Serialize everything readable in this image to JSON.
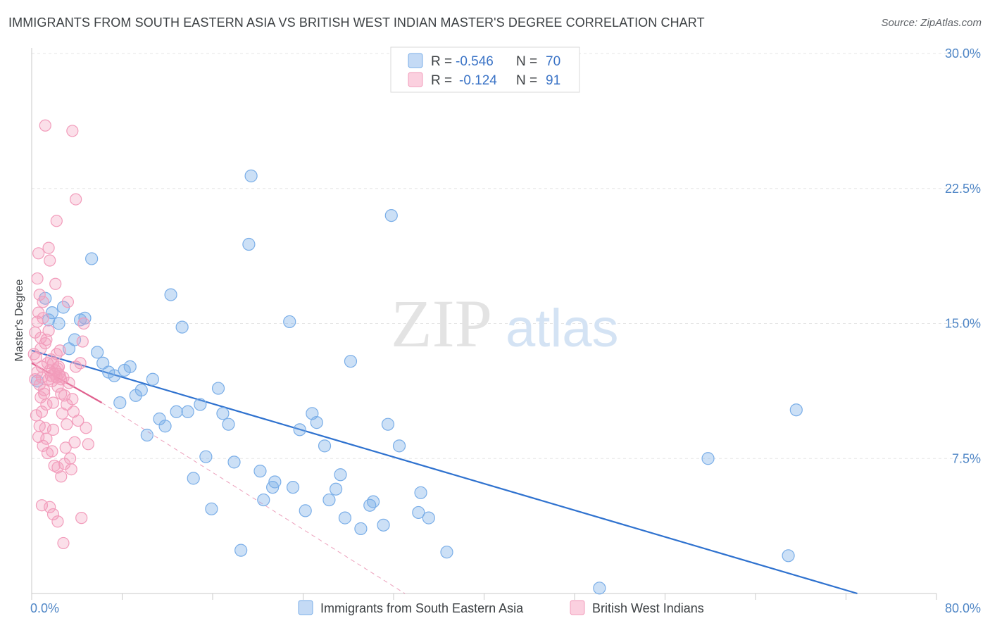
{
  "header": {
    "title": "IMMIGRANTS FROM SOUTH EASTERN ASIA VS BRITISH WEST INDIAN MASTER'S DEGREE CORRELATION CHART",
    "source": "Source: ZipAtlas.com"
  },
  "watermark": {
    "zip": "ZIP",
    "atlas": "atlas"
  },
  "chart_data": {
    "type": "scatter",
    "ylabel": "Master's Degree",
    "x_range": [
      0,
      80
    ],
    "y_range": [
      0,
      30
    ],
    "x_tick_labels": [
      "0.0%",
      "80.0%"
    ],
    "y_ticks": [
      7.5,
      15.0,
      22.5,
      30.0
    ],
    "y_tick_labels": [
      "7.5%",
      "15.0%",
      "22.5%",
      "30.0%"
    ],
    "grid": "horizontal dashed",
    "legend_placement": "top-center",
    "series": [
      {
        "name": "Immigrants from South Eastern Asia",
        "color": "#7aaee8",
        "line_color": "#2f72cf",
        "r_label": "R =",
        "r_value": "-0.546",
        "n_label": "N =",
        "n_value": "70",
        "trend": {
          "x": [
            0,
            73
          ],
          "y": [
            13.5,
            0
          ]
        },
        "points": [
          [
            0.5,
            11.8
          ],
          [
            1.2,
            16.4
          ],
          [
            1.5,
            15.2
          ],
          [
            1.8,
            15.6
          ],
          [
            2.4,
            15.0
          ],
          [
            2.8,
            15.9
          ],
          [
            3.3,
            13.6
          ],
          [
            3.8,
            14.1
          ],
          [
            4.3,
            15.2
          ],
          [
            4.7,
            15.3
          ],
          [
            5.3,
            18.6
          ],
          [
            5.8,
            13.4
          ],
          [
            6.3,
            12.8
          ],
          [
            6.8,
            12.3
          ],
          [
            7.3,
            12.1
          ],
          [
            7.8,
            10.6
          ],
          [
            8.2,
            12.4
          ],
          [
            8.7,
            12.6
          ],
          [
            9.2,
            11.0
          ],
          [
            9.7,
            11.3
          ],
          [
            10.2,
            8.8
          ],
          [
            10.7,
            11.9
          ],
          [
            11.3,
            9.7
          ],
          [
            11.8,
            9.3
          ],
          [
            12.3,
            16.6
          ],
          [
            12.8,
            10.1
          ],
          [
            13.3,
            14.8
          ],
          [
            13.8,
            10.1
          ],
          [
            14.3,
            6.4
          ],
          [
            14.9,
            10.5
          ],
          [
            15.4,
            7.6
          ],
          [
            15.9,
            4.7
          ],
          [
            16.5,
            11.4
          ],
          [
            16.9,
            10.0
          ],
          [
            17.4,
            9.4
          ],
          [
            17.9,
            7.3
          ],
          [
            18.5,
            2.4
          ],
          [
            19.2,
            19.4
          ],
          [
            19.4,
            23.2
          ],
          [
            20.2,
            6.8
          ],
          [
            20.5,
            5.2
          ],
          [
            21.3,
            5.9
          ],
          [
            21.5,
            6.2
          ],
          [
            22.8,
            15.1
          ],
          [
            23.1,
            5.9
          ],
          [
            23.7,
            9.1
          ],
          [
            24.2,
            4.6
          ],
          [
            24.8,
            10.0
          ],
          [
            25.2,
            9.5
          ],
          [
            25.9,
            8.2
          ],
          [
            26.3,
            5.2
          ],
          [
            26.9,
            5.8
          ],
          [
            27.3,
            6.6
          ],
          [
            27.7,
            4.2
          ],
          [
            28.2,
            12.9
          ],
          [
            29.1,
            3.6
          ],
          [
            29.9,
            4.9
          ],
          [
            30.2,
            5.1
          ],
          [
            31.1,
            3.8
          ],
          [
            31.5,
            9.4
          ],
          [
            31.8,
            21.0
          ],
          [
            32.5,
            8.2
          ],
          [
            34.2,
            4.5
          ],
          [
            34.4,
            5.6
          ],
          [
            35.1,
            4.2
          ],
          [
            36.7,
            2.3
          ],
          [
            50.2,
            0.3
          ],
          [
            59.8,
            7.5
          ],
          [
            66.9,
            2.1
          ],
          [
            67.6,
            10.2
          ]
        ]
      },
      {
        "name": "British West Indians",
        "color": "#f29cbb",
        "line_color": "#e0608e",
        "r_label": "R =",
        "r_value": "-0.124",
        "n_label": "N =",
        "n_value": "91",
        "trend": {
          "x": [
            0,
            6.2
          ],
          "y": [
            12.8,
            10.6
          ]
        },
        "trend_ext": {
          "x": [
            6.2,
            33
          ],
          "y": [
            10.6,
            0
          ]
        },
        "points": [
          [
            0.3,
            14.5
          ],
          [
            0.4,
            13.1
          ],
          [
            0.5,
            12.3
          ],
          [
            0.6,
            15.6
          ],
          [
            0.7,
            11.6
          ],
          [
            0.8,
            10.9
          ],
          [
            0.9,
            12.6
          ],
          [
            1.0,
            16.2
          ],
          [
            0.2,
            13.3
          ],
          [
            0.5,
            17.5
          ],
          [
            0.6,
            18.9
          ],
          [
            0.8,
            14.2
          ],
          [
            0.9,
            10.1
          ],
          [
            1.1,
            11.3
          ],
          [
            1.2,
            9.2
          ],
          [
            1.3,
            8.6
          ],
          [
            1.4,
            12.8
          ],
          [
            1.5,
            14.6
          ],
          [
            1.5,
            19.2
          ],
          [
            1.6,
            18.5
          ],
          [
            1.7,
            12.1
          ],
          [
            1.8,
            11.8
          ],
          [
            1.9,
            10.6
          ],
          [
            2.0,
            12.2
          ],
          [
            2.1,
            12.4
          ],
          [
            2.2,
            12.0
          ],
          [
            2.2,
            13.3
          ],
          [
            2.3,
            11.5
          ],
          [
            2.4,
            12.6
          ],
          [
            2.5,
            12.1
          ],
          [
            2.6,
            11.1
          ],
          [
            2.7,
            10.0
          ],
          [
            2.8,
            12.0
          ],
          [
            2.9,
            7.2
          ],
          [
            3.0,
            8.1
          ],
          [
            3.1,
            9.4
          ],
          [
            3.2,
            16.2
          ],
          [
            3.3,
            11.7
          ],
          [
            3.4,
            7.5
          ],
          [
            3.5,
            6.9
          ],
          [
            3.6,
            10.8
          ],
          [
            3.7,
            10.1
          ],
          [
            3.8,
            8.4
          ],
          [
            3.9,
            12.6
          ],
          [
            4.1,
            9.6
          ],
          [
            4.3,
            12.8
          ],
          [
            4.5,
            14.0
          ],
          [
            4.6,
            15.0
          ],
          [
            4.8,
            9.2
          ],
          [
            5.0,
            8.3
          ],
          [
            1.2,
            26.0
          ],
          [
            3.6,
            25.7
          ],
          [
            3.9,
            21.9
          ],
          [
            2.2,
            20.7
          ],
          [
            2.1,
            17.2
          ],
          [
            0.7,
            16.6
          ],
          [
            1.0,
            15.3
          ],
          [
            1.3,
            14.1
          ],
          [
            1.7,
            13.0
          ],
          [
            1.9,
            12.8
          ],
          [
            2.3,
            12.5
          ],
          [
            2.6,
            11.9
          ],
          [
            2.9,
            11.0
          ],
          [
            3.1,
            10.5
          ],
          [
            0.4,
            9.9
          ],
          [
            0.7,
            9.3
          ],
          [
            1.0,
            8.2
          ],
          [
            1.4,
            7.8
          ],
          [
            1.8,
            7.9
          ],
          [
            2.0,
            7.1
          ],
          [
            2.3,
            7.0
          ],
          [
            2.6,
            6.5
          ],
          [
            0.9,
            4.9
          ],
          [
            1.6,
            4.8
          ],
          [
            1.9,
            4.4
          ],
          [
            2.3,
            4.0
          ],
          [
            2.8,
            2.8
          ],
          [
            4.4,
            4.2
          ],
          [
            1.1,
            11.1
          ],
          [
            1.3,
            10.5
          ],
          [
            0.8,
            13.6
          ],
          [
            1.6,
            12.4
          ],
          [
            2.5,
            13.5
          ],
          [
            0.3,
            11.9
          ],
          [
            0.6,
            8.7
          ],
          [
            1.2,
            13.9
          ],
          [
            1.5,
            11.9
          ],
          [
            0.5,
            15.1
          ],
          [
            1.9,
            9.1
          ],
          [
            0.9,
            12.0
          ],
          [
            2.4,
            12.2
          ]
        ]
      }
    ]
  }
}
